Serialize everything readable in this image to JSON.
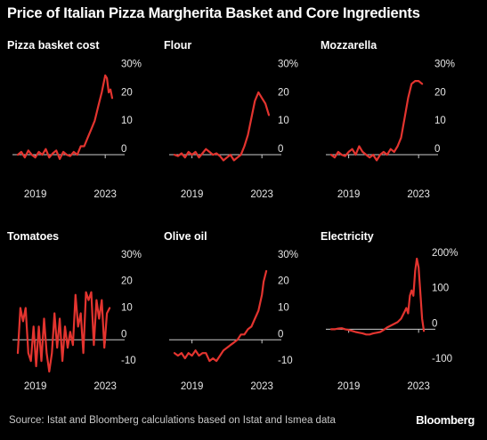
{
  "title": "Price of Italian Pizza Margherita Basket and Core Ingredients",
  "source": "Source: Istat and Bloomberg calculations based on Istat and Ismea data",
  "brand": "Bloomberg",
  "colors": {
    "line": "#e3342f",
    "zero_line": "#cccccc",
    "text": "#ffffff",
    "background": "#000000"
  },
  "chart_data": [
    {
      "type": "line",
      "title": "Pizza basket cost",
      "unit": "%",
      "x_start": 2018.0,
      "x_end": 2023.5,
      "xticks": [
        "2019",
        "2023"
      ],
      "ylim": [
        -5,
        32
      ],
      "yticks": [
        0,
        10,
        20,
        30
      ],
      "ytick_labels": [
        "0",
        "10",
        "20",
        "30%"
      ],
      "series": [
        {
          "x": [
            2018.0,
            2018.2,
            2018.4,
            2018.6,
            2018.8,
            2019.0,
            2019.2,
            2019.4,
            2019.6,
            2019.8,
            2020.0,
            2020.2,
            2020.4,
            2020.6,
            2020.8,
            2021.0,
            2021.2,
            2021.4,
            2021.6,
            2021.8,
            2022.0,
            2022.2,
            2022.4,
            2022.6,
            2022.8,
            2023.0,
            2023.1,
            2023.2,
            2023.3,
            2023.4
          ],
          "values": [
            0,
            1,
            -1,
            1.5,
            0,
            -1,
            1,
            0,
            2,
            -1,
            0.5,
            1.5,
            -1.5,
            1,
            0,
            -0.5,
            1,
            0,
            3,
            3,
            6,
            9,
            12,
            17,
            22,
            28,
            27,
            22,
            23,
            20
          ]
        }
      ]
    },
    {
      "type": "line",
      "title": "Flour",
      "unit": "%",
      "x_start": 2018.0,
      "x_end": 2023.5,
      "xticks": [
        "2019",
        "2023"
      ],
      "ylim": [
        -5,
        32
      ],
      "yticks": [
        0,
        10,
        20,
        30
      ],
      "ytick_labels": [
        "0",
        "10",
        "20",
        "30%"
      ],
      "series": [
        {
          "x": [
            2018.0,
            2018.2,
            2018.4,
            2018.6,
            2018.8,
            2019.0,
            2019.2,
            2019.4,
            2019.6,
            2019.8,
            2020.0,
            2020.2,
            2020.4,
            2020.6,
            2020.8,
            2021.0,
            2021.2,
            2021.4,
            2021.6,
            2021.8,
            2022.0,
            2022.2,
            2022.4,
            2022.6,
            2022.8,
            2023.0,
            2023.2,
            2023.4
          ],
          "values": [
            0,
            -0.5,
            0.5,
            -1,
            1,
            0,
            1,
            -1,
            0.5,
            2,
            1,
            0,
            0.5,
            -0.5,
            -2,
            -1,
            0,
            -2,
            -1,
            0,
            3,
            7,
            13,
            19,
            22,
            20,
            18,
            14
          ]
        }
      ]
    },
    {
      "type": "line",
      "title": "Mozzarella",
      "unit": "%",
      "x_start": 2018.0,
      "x_end": 2023.5,
      "xticks": [
        "2019",
        "2023"
      ],
      "ylim": [
        -5,
        32
      ],
      "yticks": [
        0,
        10,
        20,
        30
      ],
      "ytick_labels": [
        "0",
        "10",
        "20",
        "30%"
      ],
      "series": [
        {
          "x": [
            2018.0,
            2018.2,
            2018.4,
            2018.6,
            2018.8,
            2019.0,
            2019.2,
            2019.4,
            2019.6,
            2019.8,
            2020.0,
            2020.2,
            2020.4,
            2020.6,
            2020.8,
            2021.0,
            2021.2,
            2021.4,
            2021.6,
            2021.8,
            2022.0,
            2022.2,
            2022.4,
            2022.6,
            2022.8,
            2023.0,
            2023.2
          ],
          "values": [
            0,
            -1,
            1,
            0,
            -0.5,
            1,
            2,
            0,
            3,
            1,
            0,
            -1,
            0,
            -2,
            0,
            1,
            0,
            2,
            1,
            3,
            6,
            13,
            20,
            25,
            26,
            26,
            25
          ]
        }
      ]
    },
    {
      "type": "line",
      "title": "Tomatoes",
      "unit": "%",
      "x_start": 2018.0,
      "x_end": 2023.5,
      "xticks": [
        "2019",
        "2023"
      ],
      "ylim": [
        -12,
        32
      ],
      "yticks": [
        -10,
        0,
        10,
        20,
        30
      ],
      "ytick_labels": [
        "-10",
        "0",
        "10",
        "20",
        "30%"
      ],
      "series": [
        {
          "x": [
            2018.0,
            2018.15,
            2018.3,
            2018.45,
            2018.6,
            2018.75,
            2018.9,
            2019.05,
            2019.2,
            2019.35,
            2019.5,
            2019.65,
            2019.8,
            2019.95,
            2020.1,
            2020.25,
            2020.4,
            2020.55,
            2020.7,
            2020.85,
            2021.0,
            2021.15,
            2021.3,
            2021.45,
            2021.6,
            2021.75,
            2021.9,
            2022.05,
            2022.2,
            2022.35,
            2022.5,
            2022.65,
            2022.8,
            2022.95,
            2023.1,
            2023.25
          ],
          "values": [
            -5,
            12,
            7,
            12,
            -5,
            -8,
            5,
            -10,
            5,
            -8,
            8,
            -5,
            -12,
            -5,
            10,
            -3,
            8,
            -8,
            5,
            -3,
            3,
            -2,
            17,
            5,
            10,
            -5,
            18,
            15,
            18,
            -2,
            15,
            8,
            15,
            -3,
            10,
            12
          ]
        }
      ]
    },
    {
      "type": "line",
      "title": "Olive oil",
      "unit": "%",
      "x_start": 2018.0,
      "x_end": 2023.5,
      "xticks": [
        "2019",
        "2023"
      ],
      "ylim": [
        -12,
        32
      ],
      "yticks": [
        -10,
        0,
        10,
        20,
        30
      ],
      "ytick_labels": [
        "-10",
        "0",
        "10",
        "20",
        "30%"
      ],
      "series": [
        {
          "x": [
            2018.0,
            2018.2,
            2018.4,
            2018.6,
            2018.8,
            2019.0,
            2019.2,
            2019.4,
            2019.6,
            2019.8,
            2020.0,
            2020.2,
            2020.4,
            2020.6,
            2020.8,
            2021.0,
            2021.2,
            2021.4,
            2021.6,
            2021.8,
            2022.0,
            2022.2,
            2022.4,
            2022.6,
            2022.8,
            2023.0,
            2023.1,
            2023.25
          ],
          "values": [
            -5,
            -6,
            -5,
            -7,
            -5,
            -6,
            -4,
            -6,
            -5,
            -5,
            -8,
            -7,
            -8,
            -6,
            -4,
            -3,
            -2,
            -1,
            0,
            2,
            2,
            4,
            5,
            8,
            11,
            17,
            22,
            26
          ]
        }
      ]
    },
    {
      "type": "line",
      "title": "Electricity",
      "unit": "%",
      "x_start": 2018.0,
      "x_end": 2023.5,
      "xticks": [
        "2019",
        "2023"
      ],
      "ylim": [
        -120,
        210
      ],
      "yticks": [
        -100,
        0,
        100,
        200
      ],
      "ytick_labels": [
        "-100",
        "0",
        "100",
        "200%"
      ],
      "series": [
        {
          "x": [
            2018.0,
            2018.2,
            2018.4,
            2018.6,
            2018.8,
            2019.0,
            2019.2,
            2019.4,
            2019.6,
            2019.8,
            2020.0,
            2020.2,
            2020.4,
            2020.6,
            2020.8,
            2021.0,
            2021.2,
            2021.4,
            2021.6,
            2021.8,
            2022.0,
            2022.1,
            2022.2,
            2022.3,
            2022.4,
            2022.5,
            2022.6,
            2022.7,
            2022.8,
            2022.9,
            2023.0,
            2023.1,
            2023.2,
            2023.3
          ],
          "values": [
            0,
            0,
            2,
            3,
            0,
            -2,
            -5,
            -8,
            -10,
            -12,
            -15,
            -15,
            -12,
            -10,
            -8,
            -2,
            5,
            10,
            15,
            20,
            30,
            40,
            50,
            60,
            45,
            95,
            110,
            95,
            165,
            200,
            175,
            105,
            30,
            -5
          ]
        }
      ]
    }
  ]
}
